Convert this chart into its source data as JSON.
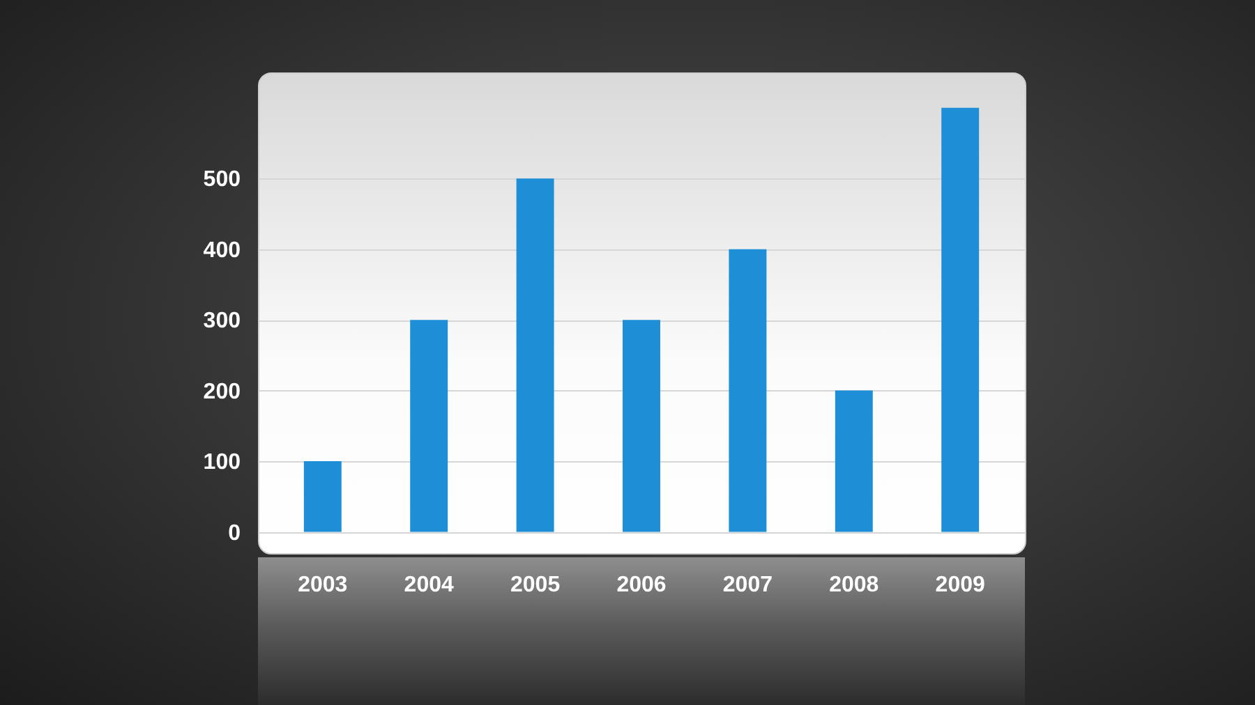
{
  "chart_data": {
    "type": "bar",
    "categories": [
      "2003",
      "2004",
      "2005",
      "2006",
      "2007",
      "2008",
      "2009"
    ],
    "values": [
      100,
      300,
      500,
      300,
      400,
      200,
      600
    ],
    "color": "#1e8fd6",
    "ylim": [
      -30,
      650
    ],
    "yticks": [
      0,
      100,
      200,
      300,
      400,
      500
    ],
    "grid": "y"
  }
}
